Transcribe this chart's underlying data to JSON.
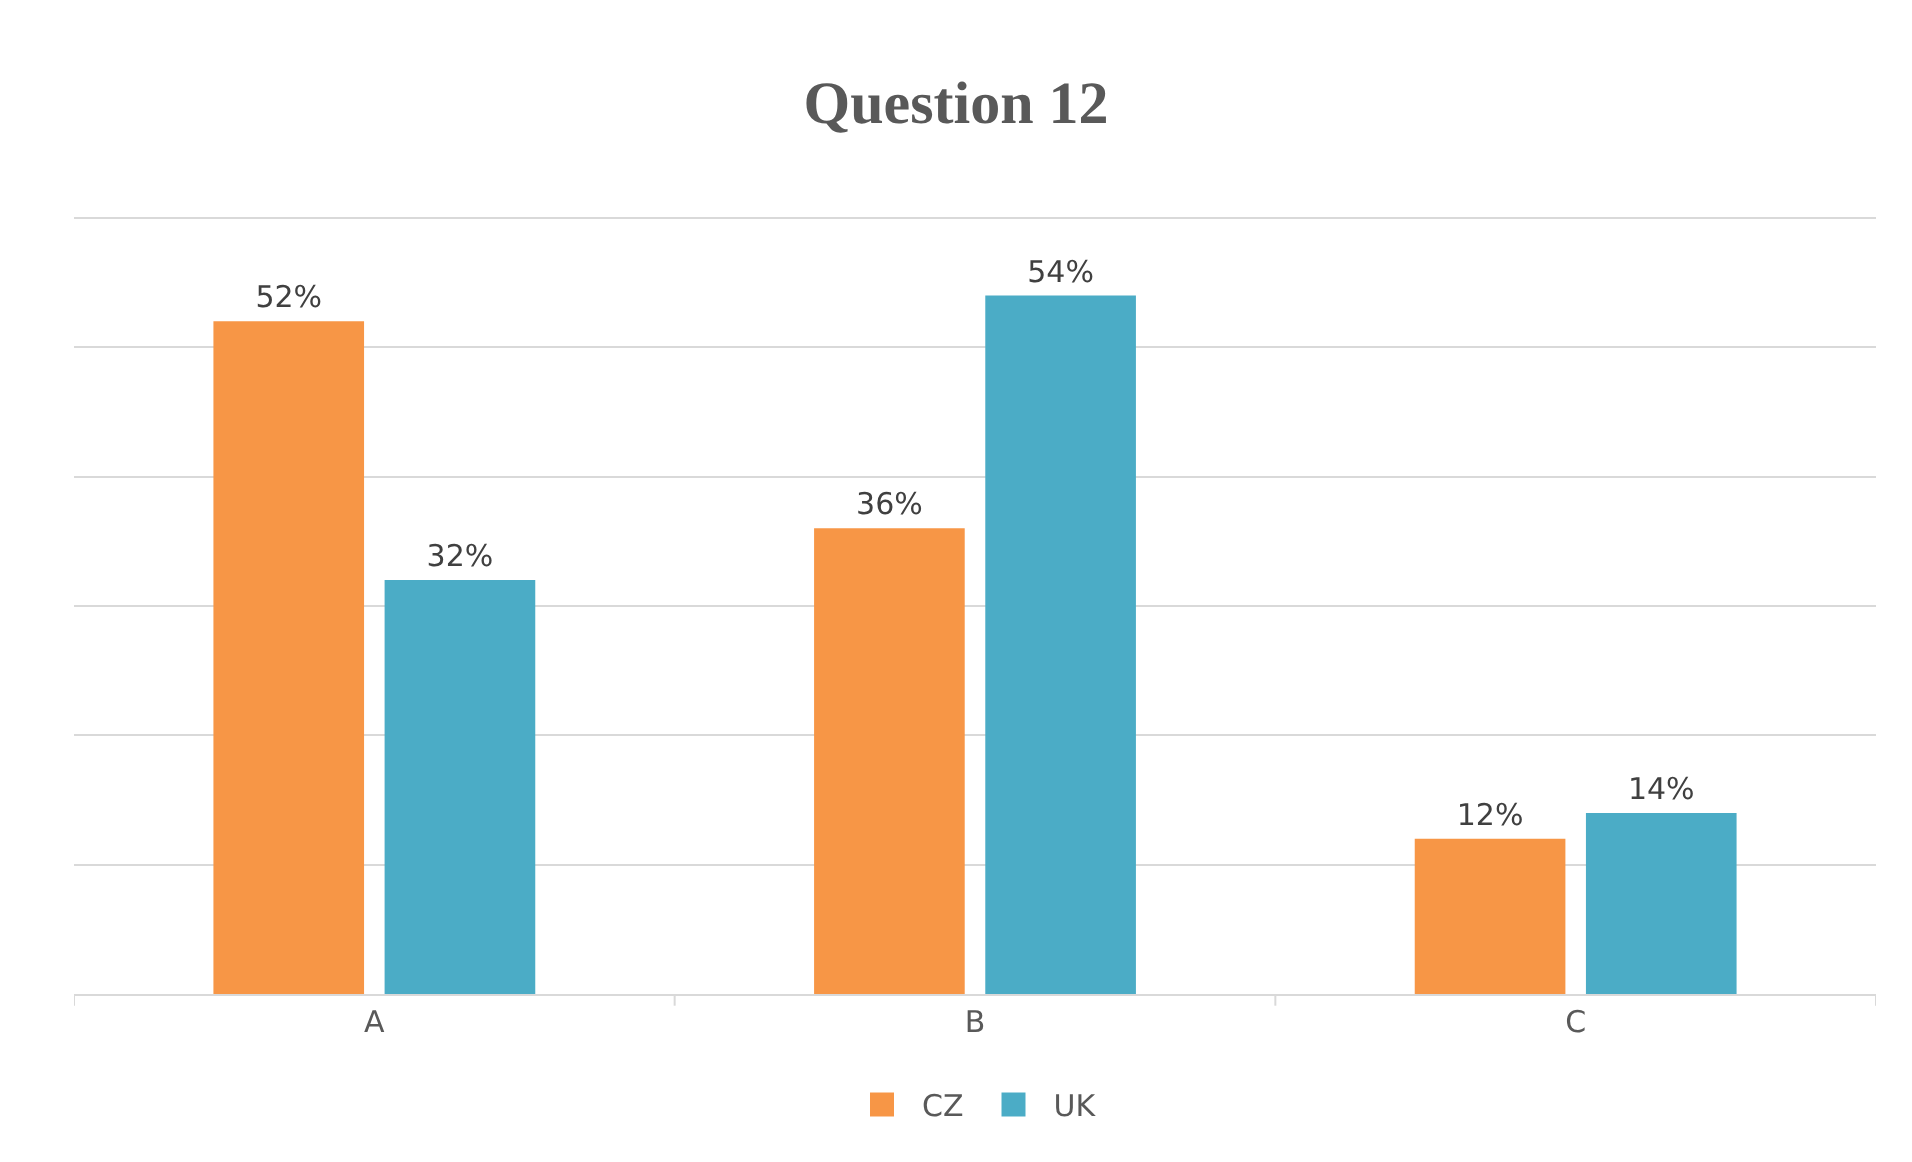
{
  "chart_data": {
    "type": "bar",
    "title": "Question 12",
    "categories": [
      "A",
      "B",
      "C"
    ],
    "series": [
      {
        "name": "CZ",
        "color": "#f79646",
        "values": [
          52,
          36,
          12
        ],
        "value_labels": [
          "52%",
          "36%",
          "12%"
        ]
      },
      {
        "name": "UK",
        "color": "#4bacc6",
        "values": [
          32,
          54,
          14
        ],
        "value_labels": [
          "32%",
          "54%",
          "14%"
        ]
      }
    ],
    "yticks": [
      {
        "value": 0,
        "label": null
      },
      {
        "value": 10,
        "label": null
      },
      {
        "value": 20,
        "label": null
      },
      {
        "value": 30,
        "label": null
      },
      {
        "value": 40,
        "label": null
      },
      {
        "value": 50,
        "label": null
      },
      {
        "value": 60,
        "label": null
      }
    ],
    "tick_labels": "x",
    "grid": "y",
    "legend": "bottom"
  }
}
